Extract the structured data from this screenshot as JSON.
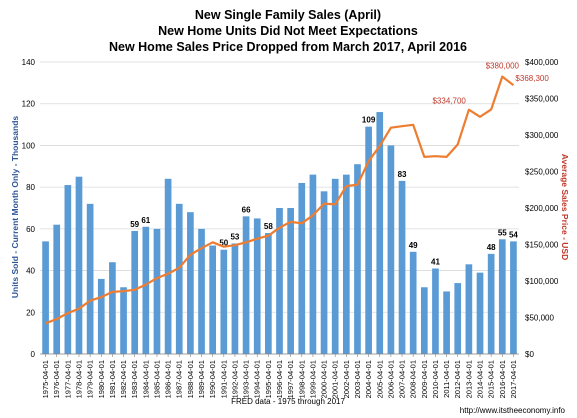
{
  "chart_data": {
    "type": "bar",
    "title_lines": [
      "New Single Family Sales (April)",
      "New Home Units Did Not Meet Expectations",
      "New Home Sales Price Dropped from March 2017, April 2016"
    ],
    "xlabel": "FRED data - 1975 through 2017",
    "ylabel_left": "Units Sold - Current Month Only - Thousands",
    "ylabel_right": "Average Sales Price - USD",
    "credit": "http://www.itstheeconomy.info",
    "ylim_left": [
      0,
      140
    ],
    "yticks_left": [
      "0",
      "20",
      "40",
      "60",
      "80",
      "100",
      "120",
      "140"
    ],
    "ylim_right": [
      0,
      400000
    ],
    "yticks_right": [
      "$0",
      "$50,000",
      "$100,000",
      "$150,000",
      "$200,000",
      "$250,000",
      "$300,000",
      "$350,000",
      "$400,000"
    ],
    "categories": [
      "1975-04-01",
      "1976-04-01",
      "1977-04-01",
      "1978-04-01",
      "1979-04-01",
      "1980-04-01",
      "1981-04-01",
      "1982-04-01",
      "1983-04-01",
      "1984-04-01",
      "1985-04-01",
      "1986-04-01",
      "1987-04-01",
      "1988-04-01",
      "1989-04-01",
      "1990-04-01",
      "1991-04-01",
      "1992-04-01",
      "1993-04-01",
      "1994-04-01",
      "1995-04-01",
      "1996-04-01",
      "1997-04-01",
      "1998-04-01",
      "1999-04-01",
      "2000-04-01",
      "2001-04-01",
      "2002-04-01",
      "2003-04-01",
      "2004-04-01",
      "2005-04-01",
      "2006-04-01",
      "2007-04-01",
      "2008-04-01",
      "2009-04-01",
      "2010-04-01",
      "2011-04-01",
      "2012-04-01",
      "2013-04-01",
      "2014-04-01",
      "2015-04-01",
      "2016-04-01",
      "2017-04-01"
    ],
    "series": [
      {
        "name": "Units Sold",
        "axis": "left",
        "color": "#5b9bd5",
        "values": [
          54,
          62,
          81,
          85,
          72,
          36,
          44,
          32,
          59,
          61,
          60,
          84,
          72,
          68,
          60,
          52,
          50,
          53,
          66,
          65,
          58,
          70,
          70,
          82,
          86,
          78,
          84,
          86,
          91,
          109,
          116,
          100,
          83,
          49,
          32,
          41,
          30,
          34,
          43,
          39,
          48,
          55,
          54
        ]
      },
      {
        "name": "Average Sales Price",
        "axis": "right",
        "color": "#ed7d31",
        "values": [
          42000,
          48000,
          56000,
          62000,
          73000,
          78000,
          85000,
          86000,
          88000,
          95000,
          104000,
          110000,
          118000,
          136000,
          145000,
          153000,
          147000,
          149000,
          153000,
          158000,
          162000,
          173000,
          181000,
          179000,
          190000,
          206000,
          205000,
          230000,
          232000,
          264000,
          285000,
          310000,
          312000,
          314000,
          270000,
          271000,
          270000,
          287000,
          334700,
          325000,
          335000,
          380000,
          368300
        ]
      }
    ],
    "bar_labels": [
      {
        "index": 8,
        "text": "59"
      },
      {
        "index": 9,
        "text": "61"
      },
      {
        "index": 16,
        "text": "50"
      },
      {
        "index": 17,
        "text": "53"
      },
      {
        "index": 18,
        "text": "66"
      },
      {
        "index": 20,
        "text": "58"
      },
      {
        "index": 29,
        "text": "109"
      },
      {
        "index": 32,
        "text": "83"
      },
      {
        "index": 33,
        "text": "49"
      },
      {
        "index": 35,
        "text": "41"
      },
      {
        "index": 40,
        "text": "48"
      },
      {
        "index": 41,
        "text": "55"
      },
      {
        "index": 42,
        "text": "54"
      }
    ],
    "price_labels": [
      {
        "index": 38,
        "text": "$334,700"
      },
      {
        "index": 41,
        "text": "$380,000"
      },
      {
        "index": 42,
        "text": "$368,300"
      }
    ],
    "grid": true,
    "legend": "none"
  }
}
